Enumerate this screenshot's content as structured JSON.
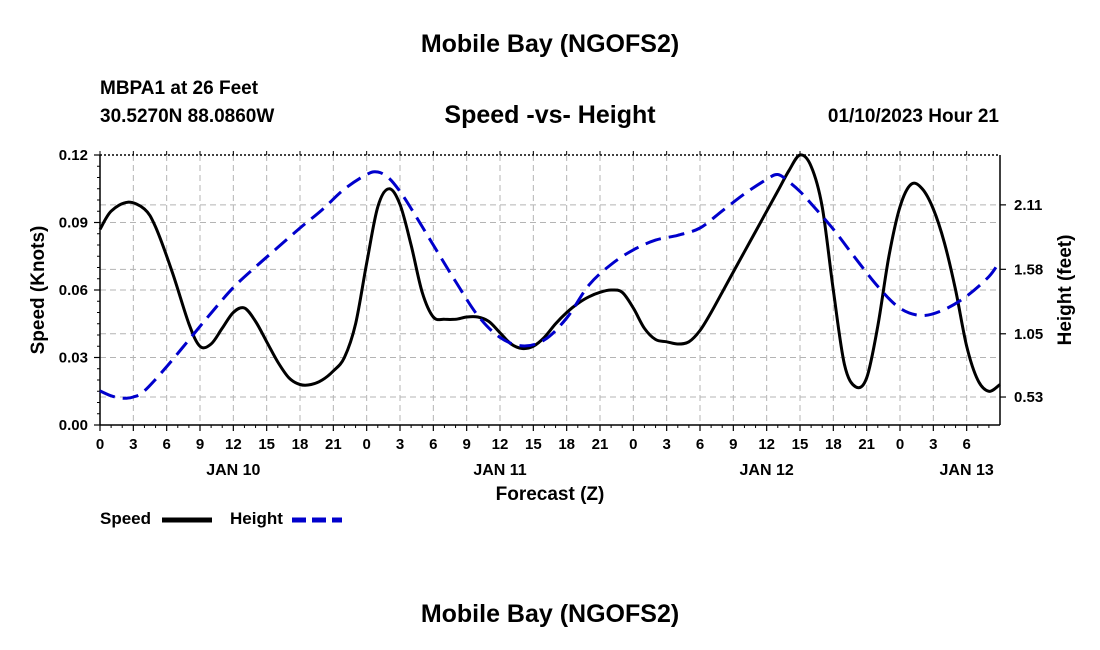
{
  "header": {
    "title": "Mobile Bay (NGOFS2)",
    "station": "MBPA1 at 26 Feet",
    "coords": "30.5270N  88.0860W",
    "subtitle": "Speed -vs- Height",
    "datetime": "01/10/2023 Hour 21"
  },
  "footer": {
    "title": "Mobile Bay (NGOFS2)"
  },
  "legend": {
    "speed_label": "Speed",
    "height_label": "Height",
    "speed_color": "#000000",
    "height_color": "#0000cc"
  },
  "chart_data": {
    "type": "line",
    "xlabel": "Forecast (Z)",
    "ylabel_left": "Speed (Knots)",
    "ylabel_right": "Height (feet)",
    "x_range_hours": [
      0,
      81
    ],
    "x_tick_labels": [
      "0",
      "3",
      "6",
      "9",
      "12",
      "15",
      "18",
      "21",
      "0",
      "3",
      "6",
      "9",
      "12",
      "15",
      "18",
      "21",
      "0",
      "3",
      "6",
      "9",
      "12",
      "15",
      "18",
      "21",
      "0",
      "3",
      "6"
    ],
    "date_labels": [
      {
        "label": "JAN 10",
        "hour": 12
      },
      {
        "label": "JAN 11",
        "hour": 36
      },
      {
        "label": "JAN 12",
        "hour": 60
      },
      {
        "label": "JAN 13",
        "hour": 78
      }
    ],
    "y_left_range": [
      0,
      0.12
    ],
    "y_left_ticks": [
      "0.00",
      "0.03",
      "0.06",
      "0.09",
      "0.12"
    ],
    "y_right_range": [
      0.3,
      2.52
    ],
    "y_right_ticks": [
      "0.53",
      "1.05",
      "1.58",
      "2.11"
    ],
    "grid": true,
    "series": [
      {
        "name": "Speed",
        "axis": "left",
        "x": [
          0,
          1,
          2.5,
          4,
          5,
          6.5,
          8,
          9,
          10,
          11,
          12,
          13,
          14,
          15,
          16,
          17,
          18,
          19,
          20,
          21,
          22,
          23,
          24,
          25,
          26,
          27,
          28,
          29,
          30,
          31,
          32,
          33,
          34,
          35,
          36,
          37,
          38,
          39,
          40,
          41,
          42,
          43,
          44,
          45,
          46,
          47,
          48,
          49,
          50,
          51,
          52,
          53,
          54,
          55,
          56,
          57,
          58,
          59,
          60,
          61,
          62,
          63,
          64,
          65,
          66,
          67,
          68,
          69,
          70,
          71,
          72,
          73,
          74,
          75,
          76,
          77,
          78,
          79,
          80,
          81
        ],
        "values": [
          0.087,
          0.095,
          0.099,
          0.096,
          0.088,
          0.068,
          0.045,
          0.035,
          0.036,
          0.043,
          0.05,
          0.052,
          0.046,
          0.037,
          0.028,
          0.021,
          0.018,
          0.018,
          0.02,
          0.024,
          0.03,
          0.045,
          0.072,
          0.097,
          0.105,
          0.098,
          0.08,
          0.059,
          0.048,
          0.047,
          0.047,
          0.048,
          0.048,
          0.046,
          0.041,
          0.036,
          0.034,
          0.035,
          0.039,
          0.045,
          0.05,
          0.054,
          0.057,
          0.059,
          0.06,
          0.059,
          0.052,
          0.043,
          0.038,
          0.037,
          0.036,
          0.037,
          0.042,
          0.05,
          0.059,
          0.068,
          0.077,
          0.086,
          0.095,
          0.104,
          0.113,
          0.12,
          0.115,
          0.097,
          0.06,
          0.027,
          0.017,
          0.021,
          0.044,
          0.075,
          0.097,
          0.107,
          0.105,
          0.096,
          0.081,
          0.06,
          0.035,
          0.02,
          0.015,
          0.018
        ]
      },
      {
        "name": "Height",
        "axis": "right",
        "x": [
          0,
          1,
          2,
          3,
          4,
          6,
          8,
          10,
          12,
          14,
          16,
          18,
          20,
          22,
          24,
          25,
          26,
          27,
          28,
          30,
          32,
          34,
          36,
          38,
          40,
          42,
          44,
          46,
          48,
          50,
          52,
          54,
          56,
          58,
          60,
          61,
          62,
          63,
          64,
          66,
          68,
          70,
          72,
          74,
          76,
          78,
          80,
          81
        ],
        "values": [
          0.58,
          0.54,
          0.52,
          0.53,
          0.58,
          0.78,
          1.0,
          1.22,
          1.43,
          1.6,
          1.76,
          1.92,
          2.07,
          2.24,
          2.36,
          2.38,
          2.33,
          2.22,
          2.08,
          1.78,
          1.48,
          1.2,
          1.02,
          0.95,
          1.0,
          1.18,
          1.45,
          1.62,
          1.74,
          1.82,
          1.86,
          1.92,
          2.06,
          2.2,
          2.32,
          2.36,
          2.3,
          2.22,
          2.12,
          1.91,
          1.67,
          1.44,
          1.26,
          1.2,
          1.25,
          1.36,
          1.52,
          1.65
        ]
      }
    ]
  }
}
